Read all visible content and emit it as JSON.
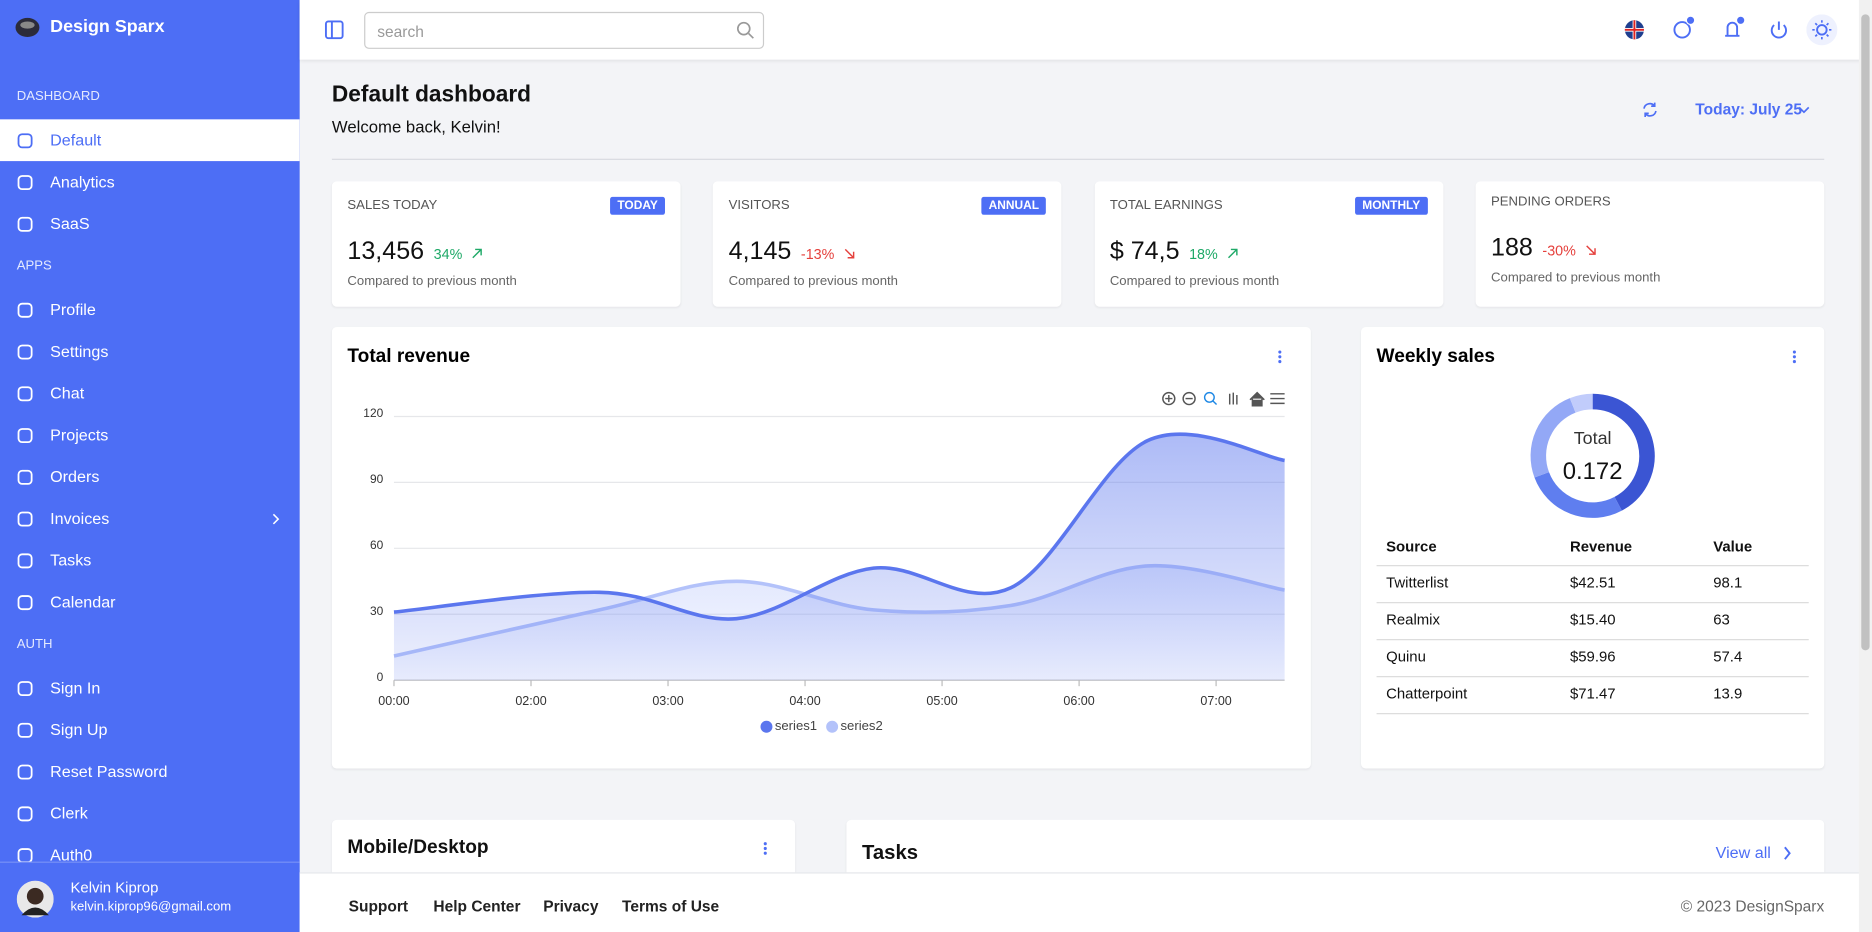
{
  "sidebar": {
    "brand": "Design Sparx",
    "sections": [
      {
        "title": "DASHBOARD",
        "items": [
          "Default",
          "Analytics",
          "SaaS"
        ]
      },
      {
        "title": "APPS",
        "items": [
          "Profile",
          "Settings",
          "Chat",
          "Projects",
          "Orders",
          "Invoices",
          "Tasks",
          "Calendar"
        ]
      },
      {
        "title": "AUTH",
        "items": [
          "Sign In",
          "Sign Up",
          "Reset Password",
          "Clerk",
          "Auth0"
        ]
      }
    ],
    "user": {
      "name": "Kelvin Kiprop",
      "email": "kelvin.kiprop96@gmail.com"
    }
  },
  "topbar": {
    "search_placeholder": "search"
  },
  "header": {
    "title": "Default dashboard",
    "subtitle": "Welcome back, Kelvin!",
    "date_filter": "Today: July 25"
  },
  "stats": [
    {
      "label": "SALES TODAY",
      "badge": "TODAY",
      "value": "13,456",
      "change": "34%",
      "note": "Compared to previous month"
    },
    {
      "label": "VISITORS",
      "badge": "ANNUAL",
      "value": "4,145",
      "change": "-13%",
      "note": "Compared to previous month"
    },
    {
      "label": "TOTAL EARNINGS",
      "badge": "MONTHLY",
      "value": "$ 74,5",
      "change": "18%",
      "note": "Compared to previous month"
    },
    {
      "label": "PENDING ORDERS",
      "value": "188",
      "change": "-30%",
      "note": "Compared to previous month"
    }
  ],
  "revenue": {
    "title": "Total revenue",
    "chart_data": {
      "type": "area",
      "x": [
        0,
        1.5,
        2.5,
        3.5,
        4.5,
        5.5,
        6.5
      ],
      "xlim": [
        0,
        6.5
      ],
      "xticks": [
        {
          "value": 0,
          "label": "00:00"
        },
        {
          "value": 1,
          "label": "02:00"
        },
        {
          "value": 2,
          "label": "03:00"
        },
        {
          "value": 3,
          "label": "04:00"
        },
        {
          "value": 4,
          "label": "05:00"
        },
        {
          "value": 5,
          "label": "06:00"
        },
        {
          "value": 6,
          "label": "07:00"
        }
      ],
      "ylim": [
        0,
        120
      ],
      "yticks": [
        0,
        30,
        60,
        90,
        120
      ],
      "grid": true,
      "series": [
        {
          "name": "series1",
          "color": "#5b76ee",
          "values": [
            31,
            40,
            28,
            51,
            42,
            109,
            100
          ]
        },
        {
          "name": "series2",
          "color": "#b3c2fa",
          "values": [
            11,
            32,
            45,
            32,
            34,
            52,
            41
          ]
        }
      ]
    }
  },
  "weekly": {
    "title": "Weekly sales",
    "donut": {
      "label": "Total",
      "value": "0.172",
      "colors": [
        "#3b55d3",
        "#5f7eef",
        "#93a8f6",
        "#c1ccfb"
      ]
    },
    "table": {
      "columns": [
        "Source",
        "Revenue",
        "Value"
      ],
      "rows": [
        [
          "Twitterlist",
          "$42.51",
          98.1
        ],
        [
          "Realmix",
          "$15.40",
          63
        ],
        [
          "Quinu",
          "$59.96",
          57.4
        ],
        [
          "Chatterpoint",
          "$71.47",
          13.9
        ]
      ]
    }
  },
  "mobile_desktop": {
    "title": "Mobile/Desktop"
  },
  "tasks": {
    "title": "Tasks",
    "link": "View all"
  },
  "footer": {
    "links": [
      "Support",
      "Help Center",
      "Privacy",
      "Terms of Use"
    ],
    "copyright": "© 2023 DesignSparx"
  }
}
